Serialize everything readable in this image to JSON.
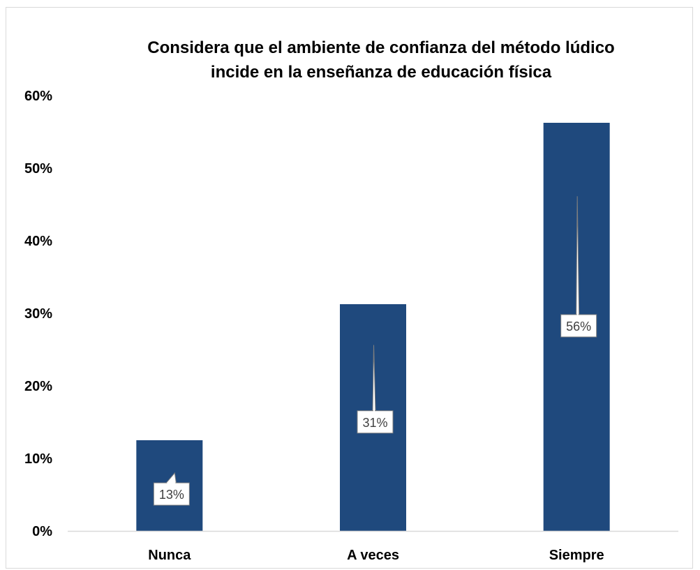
{
  "chart_data": {
    "type": "bar",
    "title_lines": [
      "Considera que el ambiente de confianza del método  lúdico",
      "incide en la enseñanza de educación física"
    ],
    "categories": [
      "Nunca",
      "A veces",
      "Siempre"
    ],
    "values": [
      0.125,
      0.3125,
      0.5625
    ],
    "data_labels": [
      "13%",
      "31%",
      "56%"
    ],
    "y_ticks": [
      0,
      0.1,
      0.2,
      0.3,
      0.4,
      0.5,
      0.6
    ],
    "y_tick_labels": [
      "0%",
      "10%",
      "20%",
      "30%",
      "40%",
      "50%",
      "60%"
    ],
    "ylim": [
      0,
      0.6
    ],
    "xlabel": "",
    "ylabel": "",
    "grid": false,
    "legend": "none",
    "colors": {
      "bar": "#1f497d",
      "label_box_fill": "#ffffff",
      "label_box_border": "#7f7f7f",
      "label_text": "#404040",
      "axis_line": "#d9d9d9"
    }
  }
}
